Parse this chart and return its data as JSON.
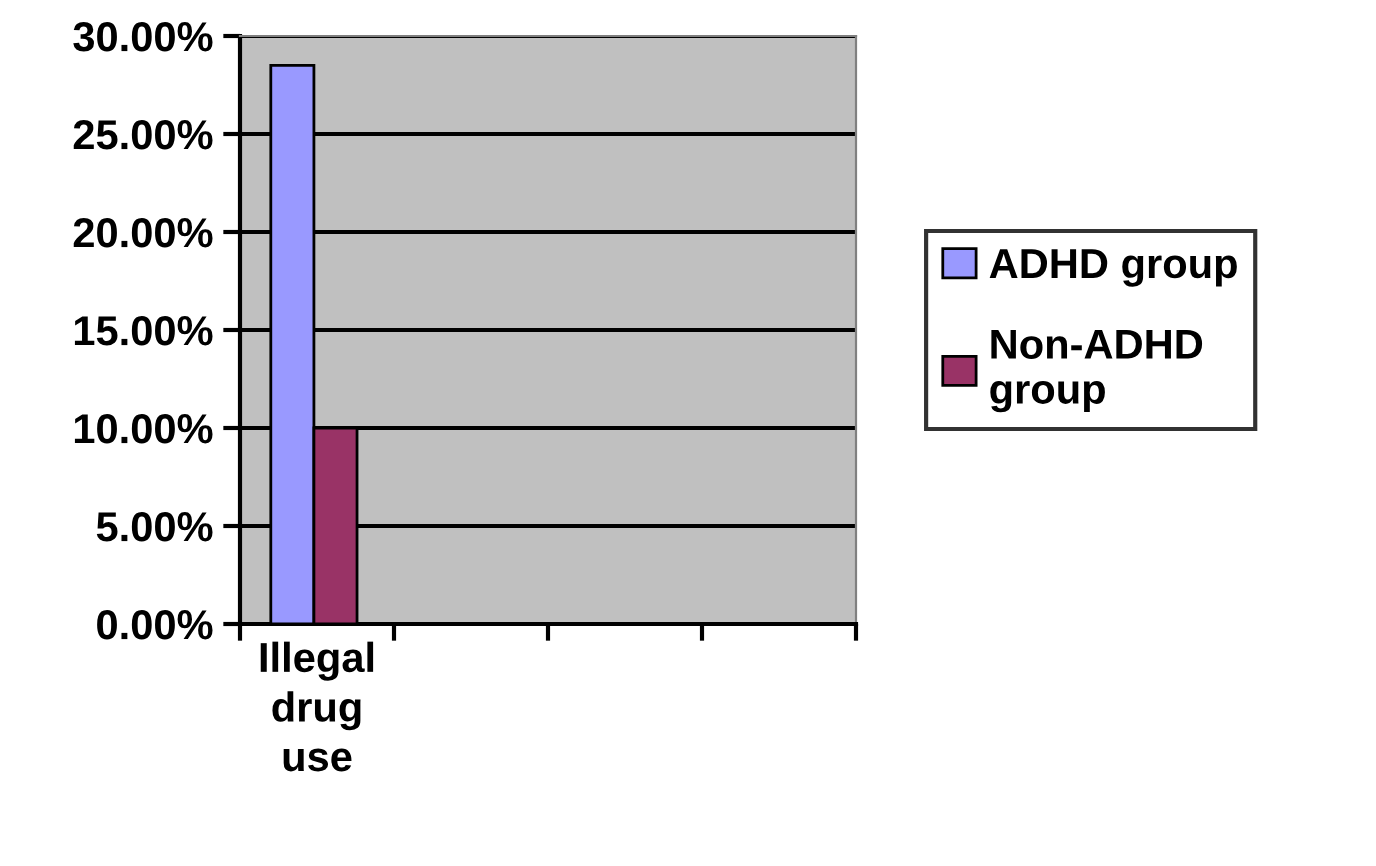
{
  "chart_data": {
    "type": "bar",
    "categories": [
      "Illegal drug use",
      null,
      null,
      null
    ],
    "series": [
      {
        "name": "ADHD group",
        "color": "#9999ff",
        "values": [
          28.5,
          null,
          null,
          null
        ]
      },
      {
        "name": "Non-ADHD group",
        "color": "#993366",
        "values": [
          10.0,
          null,
          null,
          null
        ]
      }
    ],
    "ylim": [
      0,
      30
    ],
    "yticks": [
      {
        "value": 0,
        "label": "0.00%"
      },
      {
        "value": 5,
        "label": "5.00%"
      },
      {
        "value": 10,
        "label": "10.00%"
      },
      {
        "value": 15,
        "label": "15.00%"
      },
      {
        "value": 20,
        "label": "20.00%"
      },
      {
        "value": 25,
        "label": "25.00%"
      },
      {
        "value": 30,
        "label": "30.00%"
      }
    ],
    "grid": "y",
    "legend": "right"
  }
}
